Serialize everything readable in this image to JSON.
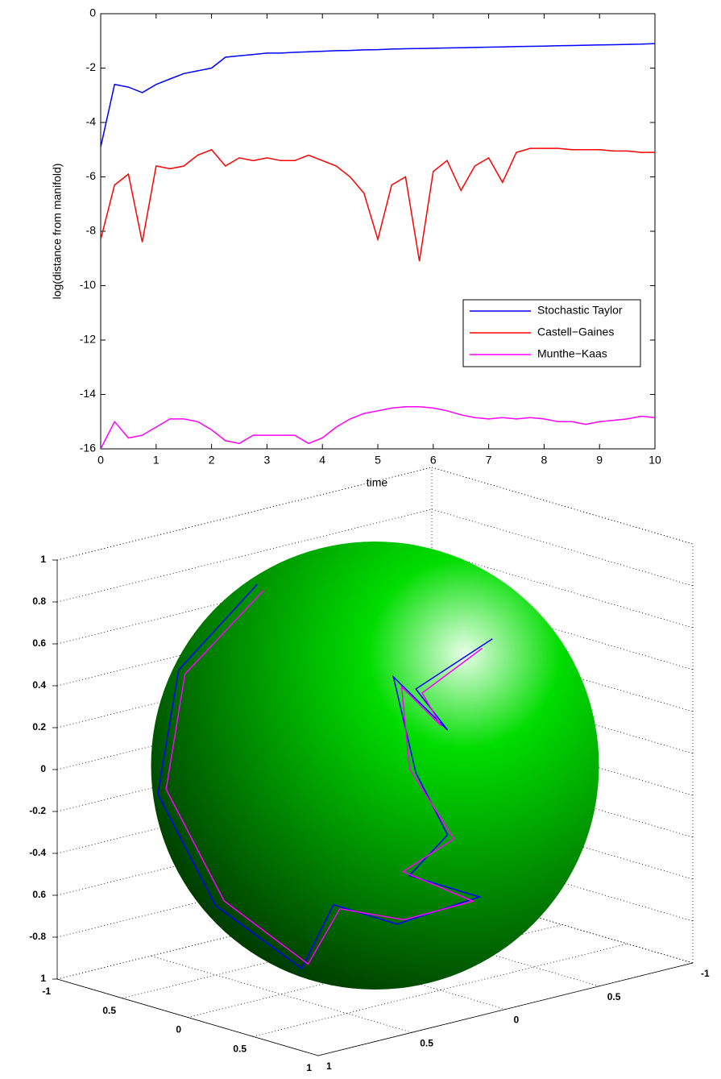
{
  "chart_data": [
    {
      "type": "line",
      "xlabel": "time",
      "ylabel": "log(distance from manifold)",
      "x": [
        0,
        0.25,
        0.5,
        0.75,
        1,
        1.25,
        1.5,
        1.75,
        2,
        2.25,
        2.5,
        2.75,
        3,
        3.25,
        3.5,
        3.75,
        4,
        4.25,
        4.5,
        4.75,
        5,
        5.25,
        5.5,
        5.75,
        6,
        6.25,
        6.5,
        6.75,
        7,
        7.25,
        7.5,
        7.75,
        8,
        8.25,
        8.5,
        8.75,
        9,
        9.25,
        9.5,
        9.75,
        10
      ],
      "series": [
        {
          "name": "Stochastic Taylor",
          "color": "#0000ff",
          "values": [
            -4.9,
            -2.6,
            -2.7,
            -2.9,
            -2.6,
            -2.4,
            -2.2,
            -2.1,
            -2.0,
            -1.6,
            -1.55,
            -1.5,
            -1.45,
            -1.45,
            -1.42,
            -1.4,
            -1.38,
            -1.36,
            -1.35,
            -1.33,
            -1.32,
            -1.3,
            -1.29,
            -1.28,
            -1.27,
            -1.26,
            -1.25,
            -1.24,
            -1.23,
            -1.22,
            -1.21,
            -1.2,
            -1.19,
            -1.18,
            -1.17,
            -1.16,
            -1.15,
            -1.14,
            -1.13,
            -1.12,
            -1.1
          ]
        },
        {
          "name": "Castell−Gaines",
          "color": "#ff0000",
          "values": [
            -8.3,
            -6.3,
            -5.9,
            -8.4,
            -5.6,
            -5.7,
            -5.6,
            -5.2,
            -5.0,
            -5.6,
            -5.3,
            -5.4,
            -5.3,
            -5.4,
            -5.4,
            -5.2,
            -5.4,
            -5.6,
            -6.0,
            -6.6,
            -8.3,
            -6.3,
            -6.0,
            -9.1,
            -5.8,
            -5.4,
            -6.5,
            -5.6,
            -5.3,
            -6.2,
            -5.1,
            -4.95,
            -4.95,
            -4.95,
            -5.0,
            -5.0,
            -5.0,
            -5.05,
            -5.05,
            -5.1,
            -5.1
          ]
        },
        {
          "name": "Munthe−Kaas",
          "color": "#ff00ff",
          "values": [
            -16,
            -15.0,
            -15.6,
            -15.5,
            -15.2,
            -14.9,
            -14.9,
            -15.0,
            -15.3,
            -15.7,
            -15.8,
            -15.5,
            -15.5,
            -15.5,
            -15.5,
            -15.8,
            -15.6,
            -15.2,
            -14.9,
            -14.7,
            -14.6,
            -14.5,
            -14.45,
            -14.45,
            -14.5,
            -14.6,
            -14.75,
            -14.85,
            -14.9,
            -14.85,
            -14.9,
            -14.85,
            -14.9,
            -15.0,
            -15.0,
            -15.1,
            -15.0,
            -14.95,
            -14.9,
            -14.8,
            -14.85
          ]
        }
      ],
      "xlim": [
        0,
        10
      ],
      "xticks": [
        0,
        1,
        2,
        3,
        4,
        5,
        6,
        7,
        8,
        9,
        10
      ],
      "ylim": [
        -16,
        0
      ],
      "yticks": [
        -16,
        -14,
        -12,
        -10,
        -8,
        -6,
        -4,
        -2,
        0
      ],
      "legend": "right"
    },
    {
      "type": "sphere3d",
      "sphere_color": "#00dd00",
      "grid": true,
      "xlim": [
        -1,
        1
      ],
      "ylim": [
        -1,
        1
      ],
      "zlim": [
        -1,
        1
      ],
      "xticks": [
        -1,
        {
          "value": -0.5,
          "label": "0.5"
        },
        0,
        0.5,
        1
      ],
      "yticks": [
        1,
        0.5,
        0,
        {
          "value": -0.5,
          "label": "0.5"
        },
        -1
      ],
      "zticks": [
        1,
        0.8,
        0.6,
        0.4,
        0.2,
        0,
        -0.2,
        -0.4,
        {
          "value": -0.6,
          "label": "0.6"
        },
        -0.8,
        {
          "value": -1,
          "label": "1"
        }
      ],
      "series": [
        {
          "color": "#0000ff",
          "x": [
            0.9,
            0.6,
            0.7,
            0.5,
            0.6,
            0.7,
            0.55,
            0.8,
            0.6,
            0.4,
            0.3,
            0,
            -0.3,
            -0.5,
            -0.4
          ],
          "y": [
            0.0,
            0.2,
            0.1,
            0.25,
            0.2,
            0.1,
            0.2,
            0.0,
            0.3,
            0.5,
            0.6,
            0.85,
            0.95,
            0.7,
            0.35
          ],
          "z": [
            0.75,
            0.5,
            0.3,
            0.55,
            0.1,
            -0.2,
            -0.4,
            -0.5,
            -0.6,
            -0.5,
            -0.8,
            -0.5,
            0,
            0.5,
            0.85
          ]
        },
        {
          "color": "#ff00ff",
          "x": [
            0.85,
            0.62,
            0.68,
            0.52,
            0.58,
            0.72,
            0.53,
            0.78,
            0.62,
            0.42,
            0.32,
            0.02,
            -0.28,
            -0.48,
            -0.38
          ],
          "y": [
            0.02,
            0.18,
            0.12,
            0.22,
            0.22,
            0.08,
            0.22,
            0.02,
            0.28,
            0.48,
            0.58,
            0.82,
            0.92,
            0.68,
            0.33
          ],
          "z": [
            0.7,
            0.48,
            0.32,
            0.5,
            0.12,
            -0.22,
            -0.38,
            -0.52,
            -0.58,
            -0.52,
            -0.78,
            -0.48,
            0.02,
            0.48,
            0.82
          ]
        }
      ]
    }
  ]
}
